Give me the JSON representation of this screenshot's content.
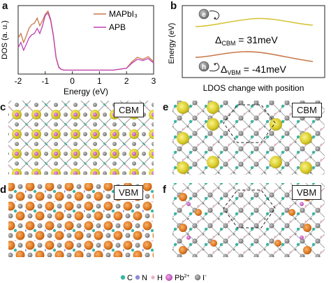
{
  "panels": {
    "a": "a",
    "b": "b",
    "c": "c",
    "d": "d",
    "e": "e",
    "f": "f"
  },
  "panel_a": {
    "ylabel": "DOS (a. u.)",
    "xlabel": "Energy (eV)",
    "xticks": [
      "-2",
      "-1",
      "0",
      "1",
      "2",
      "3"
    ],
    "legend": [
      "MAPbI₃",
      "APB"
    ],
    "colors": {
      "mapbi3": "#c8794a",
      "apb": "#c23fb5"
    }
  },
  "chart_data": {
    "type": "line",
    "xlabel": "Energy (eV)",
    "ylabel": "DOS (a. u.)",
    "xlim": [
      -2,
      3
    ],
    "series": [
      {
        "name": "MAPbI₃",
        "x": [
          -2.0,
          -1.9,
          -1.8,
          -1.7,
          -1.6,
          -1.5,
          -1.4,
          -1.3,
          -1.2,
          -1.1,
          -1.0,
          -0.9,
          -0.8,
          -0.7,
          -0.6,
          -0.5,
          -0.4,
          -0.3,
          -0.2,
          0.0,
          0.5,
          1.0,
          1.5,
          2.0,
          2.2,
          2.4,
          2.6,
          2.8,
          3.0
        ],
        "y": [
          0.55,
          0.62,
          0.48,
          0.58,
          0.7,
          0.76,
          0.78,
          0.86,
          0.74,
          0.82,
          0.92,
          0.97,
          0.84,
          0.6,
          0.25,
          0.1,
          0.06,
          0.05,
          0.05,
          0.05,
          0.05,
          0.05,
          0.05,
          0.08,
          0.18,
          0.25,
          0.22,
          0.26,
          0.18
        ]
      },
      {
        "name": "APB",
        "x": [
          -2.0,
          -1.9,
          -1.8,
          -1.7,
          -1.6,
          -1.5,
          -1.4,
          -1.3,
          -1.2,
          -1.1,
          -1.0,
          -0.9,
          -0.8,
          -0.7,
          -0.6,
          -0.5,
          -0.4,
          -0.3,
          -0.2,
          0.0,
          0.5,
          1.0,
          1.5,
          2.0,
          2.2,
          2.4,
          2.6,
          2.8,
          3.0
        ],
        "y": [
          0.4,
          0.48,
          0.36,
          0.45,
          0.55,
          0.6,
          0.62,
          0.7,
          0.62,
          0.74,
          0.9,
          0.94,
          0.82,
          0.58,
          0.24,
          0.09,
          0.06,
          0.05,
          0.05,
          0.05,
          0.05,
          0.05,
          0.05,
          0.08,
          0.16,
          0.22,
          0.2,
          0.23,
          0.16
        ]
      }
    ]
  },
  "panel_b": {
    "ylabel": "Energy (eV)",
    "xlabel": "LDOS change with position",
    "electron": "e",
    "hole": "h",
    "cbm_label": "Δ",
    "cbm_sub": "CBM",
    "cbm_value": " = 31meV",
    "vbm_label": "Δ",
    "vbm_sub": "VBM",
    "vbm_value": " = -41meV",
    "colors": {
      "cbm": "#d6c53a",
      "vbm": "#c8794a"
    }
  },
  "tags": {
    "c": "CBM",
    "d": "VBM",
    "e": "CBM",
    "f": "VBM"
  },
  "legend": {
    "c": "C",
    "n": "N",
    "h": "H",
    "pb": "Pb",
    "pb_sup": "2+",
    "i": "I",
    "i_sup": "-"
  }
}
